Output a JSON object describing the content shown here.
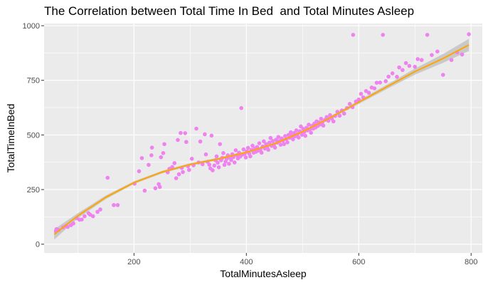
{
  "chart_data": {
    "type": "scatter",
    "title": "The Correlation between Total Time In Bed  and Total Minutes Asleep",
    "xlabel": "TotalMinutesAsleep",
    "ylabel": "TotalTimeInBed",
    "xlim": [
      40,
      820
    ],
    "ylim": [
      -40,
      1010
    ],
    "x_ticks": [
      200,
      400,
      600,
      800
    ],
    "y_ticks": [
      0,
      250,
      500,
      750,
      1000
    ],
    "grid": true,
    "colors": {
      "points": "#EE82EE",
      "smooth_line": "#FFA500",
      "confidence_band": "#BEBEBE",
      "panel_background": "#EBEBEB",
      "grid": "#FFFFFF"
    },
    "smooth": {
      "method": "loess",
      "x": [
        58,
        100,
        150,
        200,
        250,
        300,
        350,
        400,
        450,
        500,
        550,
        600,
        650,
        700,
        750,
        796
      ],
      "y": [
        45,
        130,
        215,
        282,
        330,
        365,
        390,
        420,
        460,
        515,
        580,
        650,
        720,
        790,
        850,
        912
      ],
      "band": [
        24,
        12,
        8,
        6,
        6,
        6,
        6,
        6,
        6,
        6,
        7,
        8,
        10,
        14,
        20,
        28
      ]
    },
    "points": [
      {
        "x": 61,
        "y": 59
      },
      {
        "x": 62,
        "y": 69
      },
      {
        "x": 66,
        "y": 65
      },
      {
        "x": 74,
        "y": 77
      },
      {
        "x": 79,
        "y": 84
      },
      {
        "x": 82,
        "y": 79
      },
      {
        "x": 88,
        "y": 87
      },
      {
        "x": 92,
        "y": 95
      },
      {
        "x": 98,
        "y": 119
      },
      {
        "x": 103,
        "y": 112
      },
      {
        "x": 107,
        "y": 113
      },
      {
        "x": 112,
        "y": 128
      },
      {
        "x": 119,
        "y": 142
      },
      {
        "x": 122,
        "y": 135
      },
      {
        "x": 127,
        "y": 128
      },
      {
        "x": 135,
        "y": 148
      },
      {
        "x": 140,
        "y": 159
      },
      {
        "x": 153,
        "y": 304
      },
      {
        "x": 164,
        "y": 179
      },
      {
        "x": 171,
        "y": 179
      },
      {
        "x": 201,
        "y": 277
      },
      {
        "x": 209,
        "y": 334
      },
      {
        "x": 214,
        "y": 394
      },
      {
        "x": 219,
        "y": 245
      },
      {
        "x": 226,
        "y": 363
      },
      {
        "x": 231,
        "y": 407
      },
      {
        "x": 232,
        "y": 442
      },
      {
        "x": 238,
        "y": 256
      },
      {
        "x": 244,
        "y": 275
      },
      {
        "x": 246,
        "y": 262
      },
      {
        "x": 248,
        "y": 398
      },
      {
        "x": 252,
        "y": 417
      },
      {
        "x": 254,
        "y": 458
      },
      {
        "x": 260,
        "y": 329
      },
      {
        "x": 263,
        "y": 345
      },
      {
        "x": 268,
        "y": 353
      },
      {
        "x": 272,
        "y": 371
      },
      {
        "x": 275,
        "y": 302
      },
      {
        "x": 278,
        "y": 477
      },
      {
        "x": 280,
        "y": 320
      },
      {
        "x": 283,
        "y": 509
      },
      {
        "x": 285,
        "y": 349
      },
      {
        "x": 287,
        "y": 330
      },
      {
        "x": 291,
        "y": 508
      },
      {
        "x": 293,
        "y": 468
      },
      {
        "x": 296,
        "y": 357
      },
      {
        "x": 298,
        "y": 340
      },
      {
        "x": 303,
        "y": 391
      },
      {
        "x": 306,
        "y": 361
      },
      {
        "x": 311,
        "y": 529
      },
      {
        "x": 315,
        "y": 374
      },
      {
        "x": 318,
        "y": 470
      },
      {
        "x": 322,
        "y": 366
      },
      {
        "x": 326,
        "y": 503
      },
      {
        "x": 328,
        "y": 411
      },
      {
        "x": 331,
        "y": 377
      },
      {
        "x": 334,
        "y": 364
      },
      {
        "x": 336,
        "y": 347
      },
      {
        "x": 338,
        "y": 497
      },
      {
        "x": 340,
        "y": 338
      },
      {
        "x": 343,
        "y": 360
      },
      {
        "x": 345,
        "y": 384
      },
      {
        "x": 347,
        "y": 402
      },
      {
        "x": 349,
        "y": 373
      },
      {
        "x": 351,
        "y": 352
      },
      {
        "x": 353,
        "y": 458
      },
      {
        "x": 355,
        "y": 384
      },
      {
        "x": 357,
        "y": 395
      },
      {
        "x": 359,
        "y": 417
      },
      {
        "x": 361,
        "y": 363
      },
      {
        "x": 363,
        "y": 378
      },
      {
        "x": 365,
        "y": 391
      },
      {
        "x": 367,
        "y": 407
      },
      {
        "x": 369,
        "y": 368
      },
      {
        "x": 371,
        "y": 396
      },
      {
        "x": 373,
        "y": 385
      },
      {
        "x": 375,
        "y": 412
      },
      {
        "x": 377,
        "y": 399
      },
      {
        "x": 379,
        "y": 374
      },
      {
        "x": 381,
        "y": 430
      },
      {
        "x": 383,
        "y": 407
      },
      {
        "x": 385,
        "y": 393
      },
      {
        "x": 387,
        "y": 419
      },
      {
        "x": 389,
        "y": 401
      },
      {
        "x": 391,
        "y": 623
      },
      {
        "x": 393,
        "y": 410
      },
      {
        "x": 395,
        "y": 434
      },
      {
        "x": 397,
        "y": 413
      },
      {
        "x": 399,
        "y": 397
      },
      {
        "x": 401,
        "y": 425
      },
      {
        "x": 403,
        "y": 441
      },
      {
        "x": 405,
        "y": 415
      },
      {
        "x": 407,
        "y": 402
      },
      {
        "x": 409,
        "y": 432
      },
      {
        "x": 411,
        "y": 451
      },
      {
        "x": 413,
        "y": 419
      },
      {
        "x": 415,
        "y": 438
      },
      {
        "x": 417,
        "y": 423
      },
      {
        "x": 419,
        "y": 445
      },
      {
        "x": 421,
        "y": 428
      },
      {
        "x": 423,
        "y": 462
      },
      {
        "x": 425,
        "y": 433
      },
      {
        "x": 427,
        "y": 419
      },
      {
        "x": 429,
        "y": 447
      },
      {
        "x": 431,
        "y": 471
      },
      {
        "x": 433,
        "y": 438
      },
      {
        "x": 435,
        "y": 458
      },
      {
        "x": 437,
        "y": 443
      },
      {
        "x": 439,
        "y": 432
      },
      {
        "x": 441,
        "y": 465
      },
      {
        "x": 443,
        "y": 486
      },
      {
        "x": 445,
        "y": 450
      },
      {
        "x": 447,
        "y": 472
      },
      {
        "x": 449,
        "y": 455
      },
      {
        "x": 451,
        "y": 442
      },
      {
        "x": 453,
        "y": 478
      },
      {
        "x": 455,
        "y": 465
      },
      {
        "x": 457,
        "y": 491
      },
      {
        "x": 459,
        "y": 472
      },
      {
        "x": 461,
        "y": 455
      },
      {
        "x": 463,
        "y": 484
      },
      {
        "x": 465,
        "y": 473
      },
      {
        "x": 467,
        "y": 458
      },
      {
        "x": 469,
        "y": 495
      },
      {
        "x": 471,
        "y": 481
      },
      {
        "x": 473,
        "y": 466
      },
      {
        "x": 475,
        "y": 500
      },
      {
        "x": 477,
        "y": 487
      },
      {
        "x": 479,
        "y": 512
      },
      {
        "x": 481,
        "y": 496
      },
      {
        "x": 483,
        "y": 480
      },
      {
        "x": 485,
        "y": 509
      },
      {
        "x": 487,
        "y": 494
      },
      {
        "x": 489,
        "y": 521
      },
      {
        "x": 491,
        "y": 503
      },
      {
        "x": 493,
        "y": 488
      },
      {
        "x": 495,
        "y": 517
      },
      {
        "x": 497,
        "y": 539
      },
      {
        "x": 499,
        "y": 501
      },
      {
        "x": 501,
        "y": 528
      },
      {
        "x": 503,
        "y": 513
      },
      {
        "x": 505,
        "y": 496
      },
      {
        "x": 507,
        "y": 533
      },
      {
        "x": 509,
        "y": 521
      },
      {
        "x": 511,
        "y": 547
      },
      {
        "x": 513,
        "y": 526
      },
      {
        "x": 515,
        "y": 510
      },
      {
        "x": 517,
        "y": 542
      },
      {
        "x": 519,
        "y": 529
      },
      {
        "x": 521,
        "y": 552
      },
      {
        "x": 523,
        "y": 534
      },
      {
        "x": 525,
        "y": 562
      },
      {
        "x": 527,
        "y": 541
      },
      {
        "x": 529,
        "y": 558
      },
      {
        "x": 531,
        "y": 548
      },
      {
        "x": 533,
        "y": 574
      },
      {
        "x": 535,
        "y": 556
      },
      {
        "x": 537,
        "y": 543
      },
      {
        "x": 540,
        "y": 569
      },
      {
        "x": 543,
        "y": 582
      },
      {
        "x": 546,
        "y": 565
      },
      {
        "x": 549,
        "y": 591
      },
      {
        "x": 552,
        "y": 575
      },
      {
        "x": 555,
        "y": 562
      },
      {
        "x": 558,
        "y": 587
      },
      {
        "x": 562,
        "y": 606
      },
      {
        "x": 566,
        "y": 588
      },
      {
        "x": 570,
        "y": 612
      },
      {
        "x": 574,
        "y": 598
      },
      {
        "x": 579,
        "y": 623
      },
      {
        "x": 584,
        "y": 642
      },
      {
        "x": 589,
        "y": 627
      },
      {
        "x": 590,
        "y": 958
      },
      {
        "x": 595,
        "y": 653
      },
      {
        "x": 600,
        "y": 662
      },
      {
        "x": 604,
        "y": 688
      },
      {
        "x": 608,
        "y": 672
      },
      {
        "x": 613,
        "y": 701
      },
      {
        "x": 618,
        "y": 693
      },
      {
        "x": 623,
        "y": 717
      },
      {
        "x": 628,
        "y": 713
      },
      {
        "x": 632,
        "y": 739
      },
      {
        "x": 638,
        "y": 740
      },
      {
        "x": 643,
        "y": 958
      },
      {
        "x": 648,
        "y": 746
      },
      {
        "x": 653,
        "y": 767
      },
      {
        "x": 660,
        "y": 782
      },
      {
        "x": 668,
        "y": 766
      },
      {
        "x": 672,
        "y": 809
      },
      {
        "x": 678,
        "y": 797
      },
      {
        "x": 684,
        "y": 829
      },
      {
        "x": 690,
        "y": 816
      },
      {
        "x": 700,
        "y": 812
      },
      {
        "x": 705,
        "y": 847
      },
      {
        "x": 712,
        "y": 843
      },
      {
        "x": 722,
        "y": 958
      },
      {
        "x": 730,
        "y": 866
      },
      {
        "x": 740,
        "y": 882
      },
      {
        "x": 750,
        "y": 775
      },
      {
        "x": 765,
        "y": 843
      },
      {
        "x": 775,
        "y": 878
      },
      {
        "x": 784,
        "y": 868
      },
      {
        "x": 796,
        "y": 961
      }
    ]
  }
}
